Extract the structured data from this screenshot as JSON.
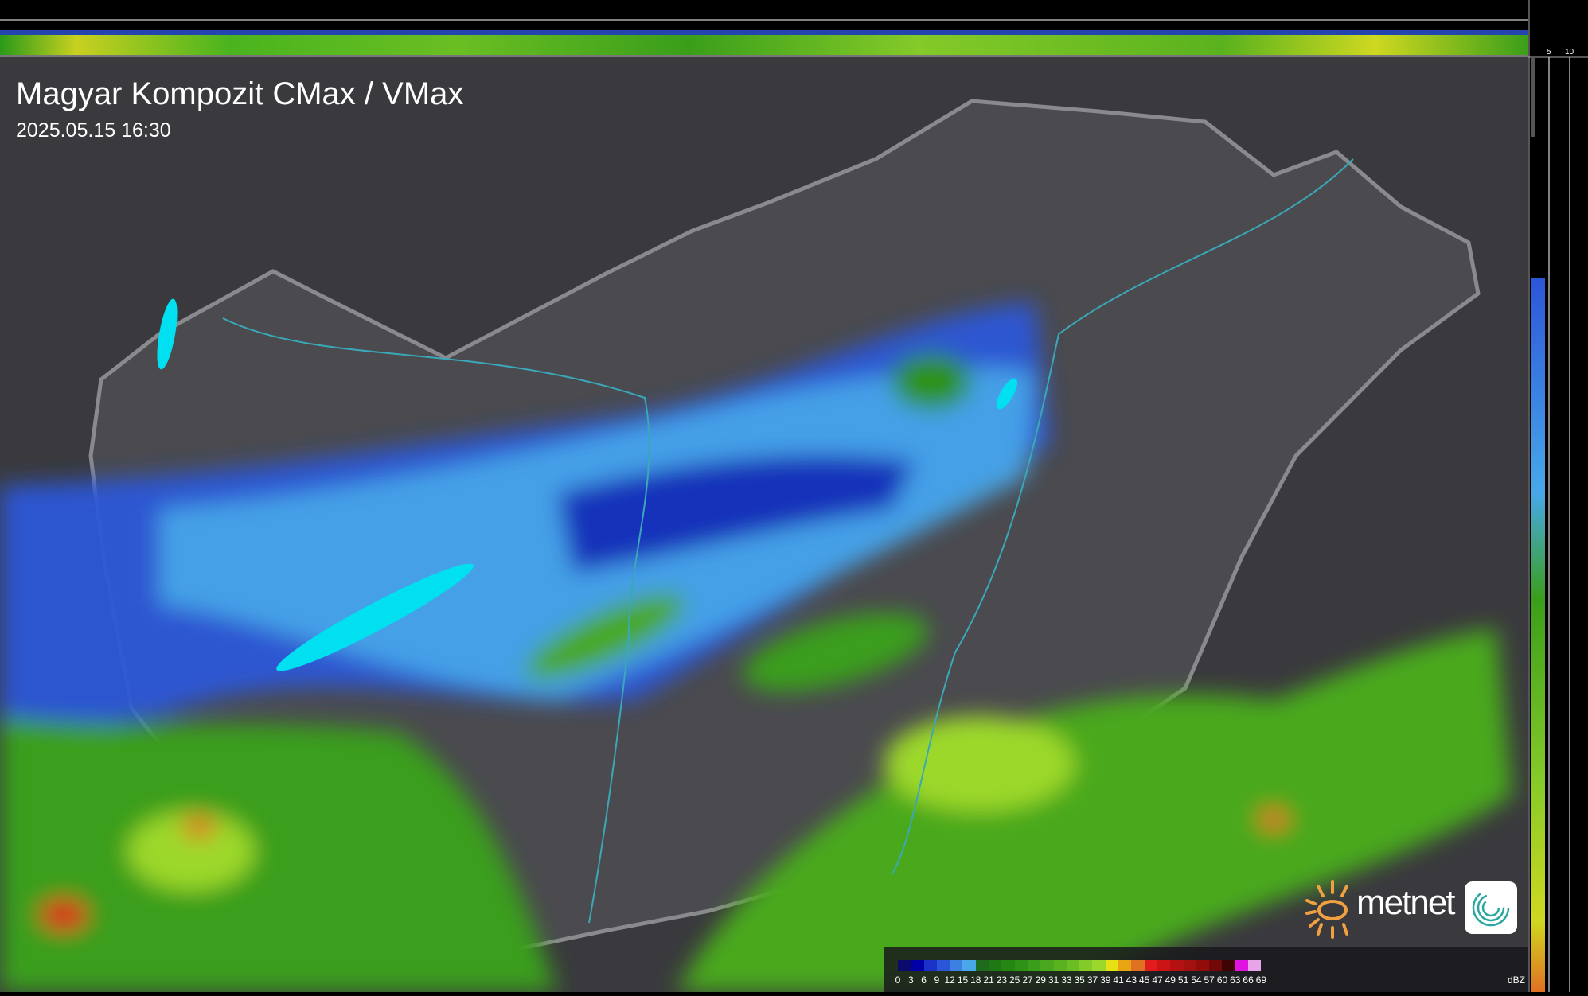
{
  "header": {
    "title": "Magyar Kompozit CMax / VMax",
    "timestamp": "2025.05.15 16:30"
  },
  "side_axis": {
    "top_labels": [
      "10",
      "5"
    ],
    "right_labels": [
      "5",
      "10"
    ]
  },
  "legend": {
    "unit": "dBZ",
    "labels": [
      "0",
      "3",
      "6",
      "9",
      "12",
      "15",
      "18",
      "21",
      "23",
      "25",
      "27",
      "29",
      "31",
      "33",
      "35",
      "37",
      "39",
      "41",
      "43",
      "45",
      "47",
      "49",
      "51",
      "54",
      "57",
      "60",
      "63",
      "66",
      "69"
    ],
    "colors": [
      "#0b0b6e",
      "#0000a6",
      "#1a32c8",
      "#2c56d8",
      "#3c80e2",
      "#48a8ea",
      "#1e6a1e",
      "#1e7814",
      "#268614",
      "#2e9216",
      "#3a9e1a",
      "#4aa81e",
      "#5ab21e",
      "#6abe22",
      "#84ca28",
      "#9cd82c",
      "#e6e014",
      "#e8a412",
      "#e07022",
      "#e01c1c",
      "#cc1414",
      "#b41212",
      "#a21010",
      "#920c0c",
      "#720808",
      "#3c0404",
      "#e014e0",
      "#e8a4e8",
      "#84e0e8"
    ]
  },
  "branding": {
    "logo_text": "metnet",
    "accent_color": "#f0a040"
  }
}
